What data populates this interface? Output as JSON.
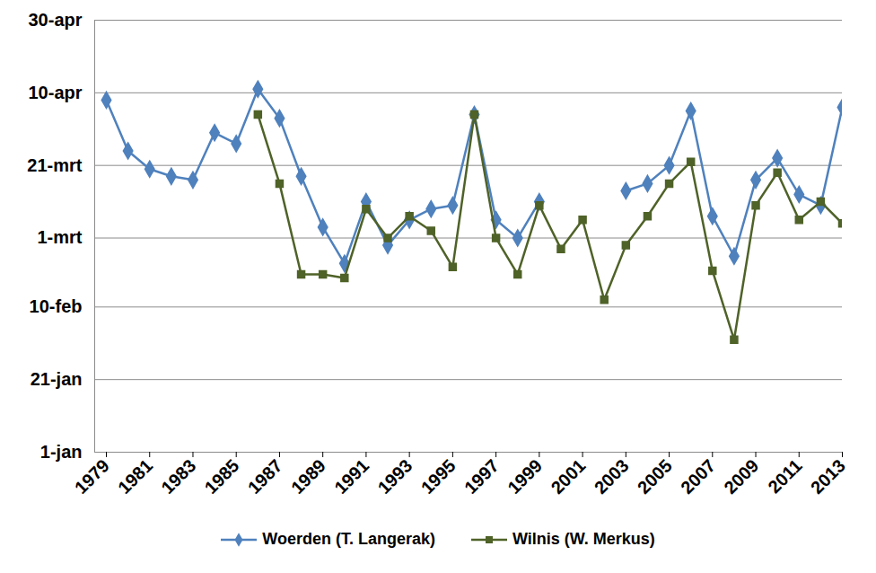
{
  "chart_data": {
    "type": "line",
    "x": [
      1979,
      1980,
      1981,
      1982,
      1983,
      1984,
      1985,
      1986,
      1987,
      1988,
      1989,
      1990,
      1991,
      1992,
      1993,
      1994,
      1995,
      1996,
      1997,
      1998,
      1999,
      2000,
      2001,
      2002,
      2003,
      2004,
      2005,
      2006,
      2007,
      2008,
      2009,
      2010,
      2011,
      2012,
      2013
    ],
    "series": [
      {
        "name": "Woerden (T. Langerak)",
        "color": "#4F81BD",
        "marker": "diamond",
        "values": [
          98,
          84,
          79,
          77,
          76,
          89,
          86,
          101,
          93,
          77,
          63,
          53,
          70,
          58,
          65,
          68,
          69,
          94,
          65,
          60,
          70,
          null,
          null,
          null,
          73,
          75,
          80,
          95,
          66,
          55,
          76,
          82,
          72,
          69,
          96
        ]
      },
      {
        "name": "Wilnis (W. Merkus)",
        "color": "#4F6228",
        "marker": "square",
        "values": [
          null,
          null,
          null,
          null,
          null,
          null,
          null,
          94,
          75,
          50,
          50,
          49,
          68,
          60,
          66,
          62,
          52,
          94,
          60,
          50,
          69,
          57,
          65,
          43,
          58,
          66,
          75,
          81,
          51,
          32,
          69,
          78,
          65,
          70,
          64
        ]
      }
    ],
    "xlim": [
      1979,
      2013
    ],
    "xticks": [
      1979,
      1981,
      1983,
      1985,
      1987,
      1989,
      1991,
      1993,
      1995,
      1997,
      1999,
      2001,
      2003,
      2005,
      2007,
      2009,
      2011,
      2013
    ],
    "ylim": [
      1,
      120
    ],
    "yticks": [
      {
        "value": 1,
        "label": "1-jan"
      },
      {
        "value": 21,
        "label": "21-jan"
      },
      {
        "value": 41,
        "label": "10-feb"
      },
      {
        "value": 60,
        "label": "1-mrt"
      },
      {
        "value": 80,
        "label": "21-mrt"
      },
      {
        "value": 100,
        "label": "10-apr"
      },
      {
        "value": 120,
        "label": "30-apr"
      }
    ],
    "grid": true,
    "legend": "bottom"
  }
}
